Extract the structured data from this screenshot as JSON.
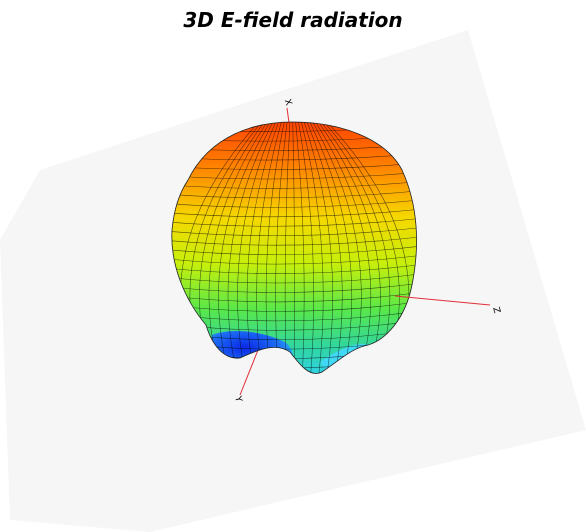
{
  "title": "3D E-field radiation",
  "axes": {
    "x": "X",
    "y": "Y",
    "z": "Z"
  },
  "colors": {
    "axis": "#e0303a",
    "mesh": "#000000",
    "background_panel": "#f7f7f7"
  },
  "colormap": [
    "#0b28e8",
    "#2ed2ff",
    "#59e84a",
    "#f1f200",
    "#ff9a00",
    "#ff3b00"
  ]
}
